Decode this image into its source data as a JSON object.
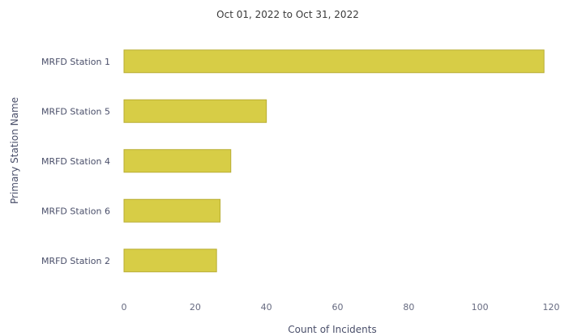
{
  "chart_data": {
    "type": "bar",
    "orientation": "horizontal",
    "subtitle": "Oct 01, 2022 to Oct 31, 2022",
    "xlabel": "Count of Incidents",
    "ylabel": "Primary Station Name",
    "categories": [
      "MRFD Station 1",
      "MRFD Station 5",
      "MRFD Station 4",
      "MRFD Station 6",
      "MRFD Station 2"
    ],
    "values": [
      118,
      40,
      30,
      27,
      26
    ],
    "xlim": [
      0,
      120
    ],
    "xticks": [
      "0",
      "20",
      "40",
      "60",
      "80",
      "100",
      "120"
    ],
    "grid": false,
    "legend": "none",
    "bar_color": "#d7cd46"
  }
}
